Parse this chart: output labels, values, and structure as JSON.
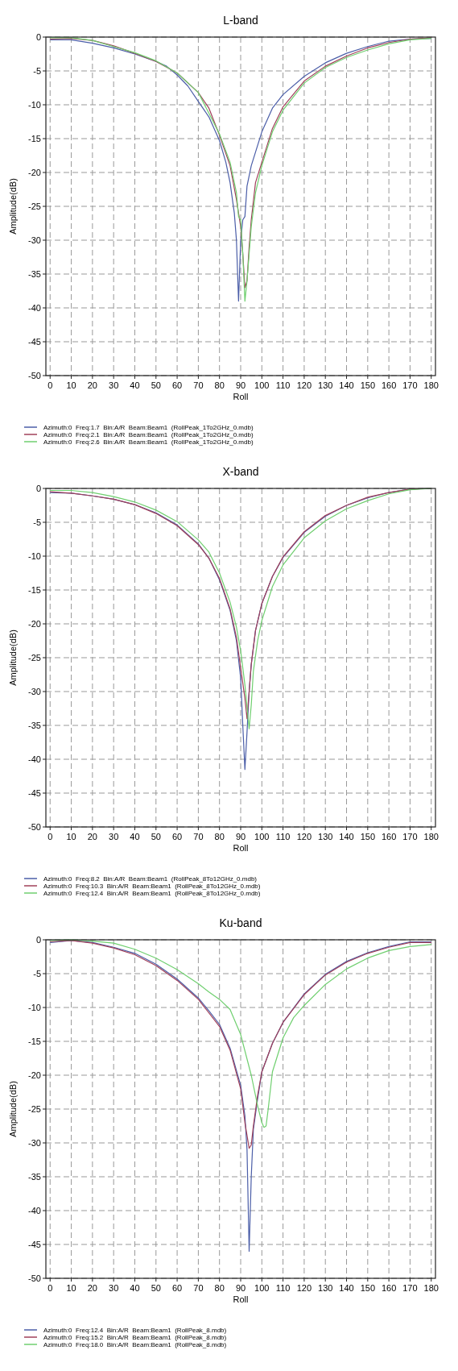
{
  "chart_data": [
    {
      "type": "line",
      "title": "L-band",
      "xlabel": "Roll",
      "ylabel": "Amplitude(dB)",
      "xlim": [
        -2,
        182
      ],
      "ylim": [
        -50,
        0
      ],
      "xticks": [
        0,
        10,
        20,
        30,
        40,
        50,
        60,
        70,
        80,
        90,
        100,
        110,
        120,
        130,
        140,
        150,
        160,
        170,
        180
      ],
      "yticks": [
        0,
        -5,
        -10,
        -15,
        -20,
        -25,
        -30,
        -35,
        -40,
        -45,
        -50
      ],
      "grid": true,
      "legend": "bottom",
      "series": [
        {
          "name": "Azimuth:0  Freq:1.7  Bin:A/R  Beam:Beam1  (RollPeak_1To2GHz_0.mdb)",
          "color": "#4b5ea8",
          "x": [
            0,
            10,
            20,
            30,
            40,
            50,
            55,
            60,
            65,
            70,
            75,
            80,
            83,
            85,
            87,
            88,
            89,
            90,
            91,
            92,
            93,
            95,
            100,
            105,
            110,
            120,
            130,
            140,
            150,
            160,
            170,
            180
          ],
          "values": [
            -0.4,
            -0.4,
            -0.9,
            -1.6,
            -2.5,
            -3.6,
            -4.3,
            -5.6,
            -7.2,
            -9.5,
            -11.8,
            -15.3,
            -18.5,
            -21.5,
            -26,
            -30,
            -39,
            -30,
            -27,
            -26.5,
            -22,
            -19,
            -14,
            -10.5,
            -8.5,
            -5.8,
            -3.8,
            -2.4,
            -1.4,
            -0.6,
            -0.3,
            -0.2
          ]
        },
        {
          "name": "Azimuth:0  Freq:2.1  Bin:A/R  Beam:Beam1  (RollPeak_1To2GHz_0.mdb)",
          "color": "#a0405a",
          "x": [
            0,
            10,
            20,
            30,
            40,
            50,
            60,
            70,
            75,
            80,
            85,
            88,
            90,
            91,
            92,
            93,
            94,
            95,
            97,
            100,
            105,
            110,
            120,
            130,
            140,
            150,
            160,
            170,
            180
          ],
          "values": [
            -0.3,
            -0.2,
            -0.5,
            -1.3,
            -2.4,
            -3.6,
            -5.3,
            -8.2,
            -10.5,
            -14.5,
            -19,
            -24,
            -28,
            -32,
            -37,
            -36,
            -31,
            -27,
            -21.5,
            -18.5,
            -13.5,
            -10.3,
            -6.5,
            -4.3,
            -2.8,
            -1.6,
            -0.8,
            -0.3,
            -0.1
          ]
        },
        {
          "name": "Azimuth:0  Freq:2.6  Bin:A/R  Beam:Beam1  (RollPeak_1To2GHz_0.mdb)",
          "color": "#6fcf6f",
          "x": [
            0,
            10,
            20,
            30,
            40,
            50,
            60,
            70,
            80,
            85,
            88,
            89,
            90,
            91,
            92,
            93,
            94,
            95,
            97,
            100,
            105,
            110,
            120,
            130,
            140,
            150,
            160,
            170,
            180
          ],
          "values": [
            -0.1,
            -0.1,
            -0.5,
            -1.4,
            -2.3,
            -3.5,
            -5.3,
            -8.2,
            -14.3,
            -18.5,
            -23,
            -26.5,
            -27,
            -32,
            -39,
            -36,
            -32,
            -28,
            -23,
            -19,
            -14,
            -10.8,
            -6.8,
            -4.5,
            -3,
            -1.9,
            -1,
            -0.4,
            -0.2
          ]
        }
      ]
    },
    {
      "type": "line",
      "title": "X-band",
      "xlabel": "Roll",
      "ylabel": "Amplitude(dB)",
      "xlim": [
        -2,
        182
      ],
      "ylim": [
        -50,
        0
      ],
      "xticks": [
        0,
        10,
        20,
        30,
        40,
        50,
        60,
        70,
        80,
        90,
        100,
        110,
        120,
        130,
        140,
        150,
        160,
        170,
        180
      ],
      "yticks": [
        0,
        -5,
        -10,
        -15,
        -20,
        -25,
        -30,
        -35,
        -40,
        -45,
        -50
      ],
      "grid": true,
      "legend": "bottom",
      "series": [
        {
          "name": "Azimuth:0  Freq:8.2  Bin:A/R  Beam:Beam1  (RollPeak_8To12GHz_0.mdb)",
          "color": "#4b5ea8",
          "x": [
            0,
            10,
            20,
            30,
            40,
            50,
            60,
            70,
            75,
            80,
            85,
            88,
            90,
            91,
            92,
            93,
            94,
            95,
            97,
            100,
            105,
            110,
            120,
            130,
            140,
            150,
            160,
            170,
            180
          ],
          "values": [
            -0.6,
            -0.7,
            -1.1,
            -1.6,
            -2.4,
            -3.6,
            -5.4,
            -8.2,
            -10.3,
            -13.5,
            -18,
            -22.5,
            -28,
            -35,
            -41.5,
            -36,
            -30,
            -26,
            -21,
            -17,
            -13,
            -10.2,
            -6.5,
            -4.1,
            -2.5,
            -1.4,
            -0.6,
            -0.1,
            0
          ]
        },
        {
          "name": "Azimuth:0  Freq:10.3  Bin:A/R  Beam:Beam1  (RollPeak_8To12GHz_0.mdb)",
          "color": "#a0405a",
          "x": [
            0,
            10,
            20,
            30,
            40,
            50,
            60,
            70,
            75,
            80,
            85,
            88,
            90,
            92,
            93,
            94,
            95,
            97,
            100,
            105,
            110,
            120,
            130,
            140,
            150,
            160,
            170,
            180
          ],
          "values": [
            -0.5,
            -0.7,
            -1.1,
            -1.6,
            -2.4,
            -3.7,
            -5.5,
            -8.3,
            -10.3,
            -13.3,
            -17.8,
            -22,
            -26.5,
            -31,
            -34,
            -30,
            -26,
            -21,
            -17,
            -13,
            -10.1,
            -6.4,
            -4,
            -2.5,
            -1.3,
            -0.6,
            -0.1,
            0
          ]
        },
        {
          "name": "Azimuth:0  Freq:12.4  Bin:A/R  Beam:Beam1  (RollPeak_8To12GHz_0.mdb)",
          "color": "#6fcf6f",
          "x": [
            0,
            10,
            20,
            30,
            40,
            50,
            60,
            70,
            75,
            80,
            85,
            88,
            90,
            92,
            94,
            95,
            96,
            98,
            100,
            105,
            110,
            120,
            130,
            140,
            150,
            160,
            170,
            180
          ],
          "values": [
            -0.3,
            -0.3,
            -0.6,
            -1.2,
            -2,
            -3.2,
            -4.9,
            -7.6,
            -9.4,
            -12.5,
            -16.8,
            -20.5,
            -24,
            -29,
            -35.5,
            -32,
            -27,
            -22.5,
            -19.5,
            -14.5,
            -11.3,
            -7.3,
            -4.8,
            -3,
            -1.8,
            -0.8,
            -0.2,
            0
          ]
        }
      ]
    },
    {
      "type": "line",
      "title": "Ku-band",
      "xlabel": "Roll",
      "ylabel": "Amplitude(dB)",
      "xlim": [
        -2,
        182
      ],
      "ylim": [
        -50,
        0
      ],
      "xticks": [
        0,
        10,
        20,
        30,
        40,
        50,
        60,
        70,
        80,
        90,
        100,
        110,
        120,
        130,
        140,
        150,
        160,
        170,
        180
      ],
      "yticks": [
        0,
        -5,
        -10,
        -15,
        -20,
        -25,
        -30,
        -35,
        -40,
        -45,
        -50
      ],
      "grid": true,
      "legend": "bottom",
      "series": [
        {
          "name": "Azimuth:0  Freq:12.4  Bin:A/R  Beam:Beam1  (RollPeak_8.mdb)",
          "color": "#4b5ea8",
          "x": [
            0,
            10,
            20,
            30,
            40,
            50,
            60,
            70,
            75,
            80,
            85,
            90,
            92,
            93,
            94,
            95,
            96,
            98,
            100,
            105,
            110,
            120,
            130,
            140,
            150,
            160,
            170,
            180
          ],
          "values": [
            -0.4,
            -0.1,
            -0.4,
            -1.1,
            -2,
            -3.6,
            -5.8,
            -8.6,
            -10.5,
            -12.5,
            -16,
            -21.5,
            -26,
            -31,
            -46,
            -35,
            -28,
            -23.5,
            -19.5,
            -15.3,
            -12.2,
            -8,
            -5.1,
            -3.2,
            -1.9,
            -1,
            -0.3,
            -0.3
          ]
        },
        {
          "name": "Azimuth:0  Freq:15.2  Bin:A/R  Beam:Beam1  (RollPeak_8.mdb)",
          "color": "#a0405a",
          "x": [
            0,
            10,
            20,
            30,
            40,
            50,
            60,
            70,
            80,
            85,
            90,
            92,
            94,
            95,
            96,
            98,
            100,
            105,
            110,
            120,
            130,
            140,
            150,
            160,
            170,
            180
          ],
          "values": [
            -0.3,
            -0.1,
            -0.5,
            -1.2,
            -2.2,
            -3.8,
            -6,
            -8.8,
            -12.8,
            -16.3,
            -22,
            -27,
            -30.8,
            -30.3,
            -27.5,
            -23,
            -19.5,
            -15.3,
            -12.2,
            -8.1,
            -5.2,
            -3.3,
            -2,
            -1.1,
            -0.4,
            -0.4
          ]
        },
        {
          "name": "Azimuth:0  Freq:18.0  Bin:A/R  Beam:Beam1  (RollPeak_8.mdb)",
          "color": "#6fcf6f",
          "x": [
            0,
            10,
            20,
            30,
            40,
            50,
            60,
            70,
            75,
            80,
            85,
            90,
            95,
            98,
            100,
            101,
            102,
            103,
            105,
            110,
            115,
            120,
            130,
            140,
            150,
            160,
            170,
            180
          ],
          "values": [
            -0.1,
            0,
            -0.2,
            -0.5,
            -1.4,
            -2.7,
            -4.4,
            -6.5,
            -7.7,
            -8.8,
            -10.3,
            -14,
            -20,
            -24.5,
            -27,
            -27.7,
            -27.5,
            -25,
            -19.5,
            -14.5,
            -11.5,
            -9.7,
            -6.6,
            -4.3,
            -2.7,
            -1.6,
            -1,
            -0.7
          ]
        }
      ]
    }
  ]
}
